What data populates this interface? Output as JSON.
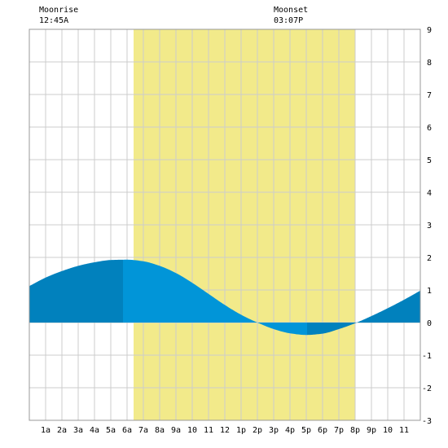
{
  "moon": {
    "rise_title": "Moonrise",
    "rise_time": "12:45A",
    "set_title": "Moonset",
    "set_time": "03:07P"
  },
  "chart_data": {
    "type": "area",
    "title": "",
    "xlabel": "",
    "ylabel": "",
    "xlim": [
      -1,
      23
    ],
    "ylim": [
      -3,
      9
    ],
    "y_ticks": [
      "-3",
      "-2",
      "-1",
      "0",
      "1",
      "2",
      "3",
      "4",
      "5",
      "6",
      "7",
      "8",
      "9"
    ],
    "x_ticks": [
      {
        "hour": 0,
        "label": "1a"
      },
      {
        "hour": 1,
        "label": "2a"
      },
      {
        "hour": 2,
        "label": "3a"
      },
      {
        "hour": 3,
        "label": "4a"
      },
      {
        "hour": 4,
        "label": "5a"
      },
      {
        "hour": 5,
        "label": "6a"
      },
      {
        "hour": 6,
        "label": "7a"
      },
      {
        "hour": 7,
        "label": "8a"
      },
      {
        "hour": 8,
        "label": "9a"
      },
      {
        "hour": 9,
        "label": "10"
      },
      {
        "hour": 10,
        "label": "11"
      },
      {
        "hour": 11,
        "label": "12"
      },
      {
        "hour": 12,
        "label": "1p"
      },
      {
        "hour": 13,
        "label": "2p"
      },
      {
        "hour": 14,
        "label": "3p"
      },
      {
        "hour": 15,
        "label": "4p"
      },
      {
        "hour": 16,
        "label": "5p"
      },
      {
        "hour": 17,
        "label": "6p"
      },
      {
        "hour": 18,
        "label": "7p"
      },
      {
        "hour": 19,
        "label": "8p"
      },
      {
        "hour": 20,
        "label": "9p"
      },
      {
        "hour": 21,
        "label": "10"
      },
      {
        "hour": 22,
        "label": "11"
      }
    ],
    "grid": true,
    "daylight": {
      "start_hour": 5.4,
      "end_hour": 19.0,
      "color": "#f2ea8a"
    },
    "night_shading": [
      [
        -1,
        4.7
      ],
      [
        16.05,
        19.0
      ],
      [
        19.0,
        23
      ]
    ],
    "colors": {
      "tide_day": "#0195d8",
      "tide_night": "#0181bd",
      "grid": "#cccccc",
      "border": "#999999"
    },
    "tide": {
      "hours": [
        -1,
        0,
        1,
        2,
        3,
        4,
        5,
        6,
        7,
        8,
        9,
        10,
        11,
        12,
        13,
        14,
        15,
        16,
        17,
        18,
        19,
        20,
        21,
        22,
        23
      ],
      "height_ft": [
        1.12,
        1.38,
        1.58,
        1.74,
        1.85,
        1.92,
        1.93,
        1.88,
        1.74,
        1.52,
        1.22,
        0.88,
        0.54,
        0.24,
        0.0,
        -0.2,
        -0.33,
        -0.38,
        -0.34,
        -0.2,
        -0.02,
        0.2,
        0.44,
        0.7,
        0.98
      ]
    }
  }
}
